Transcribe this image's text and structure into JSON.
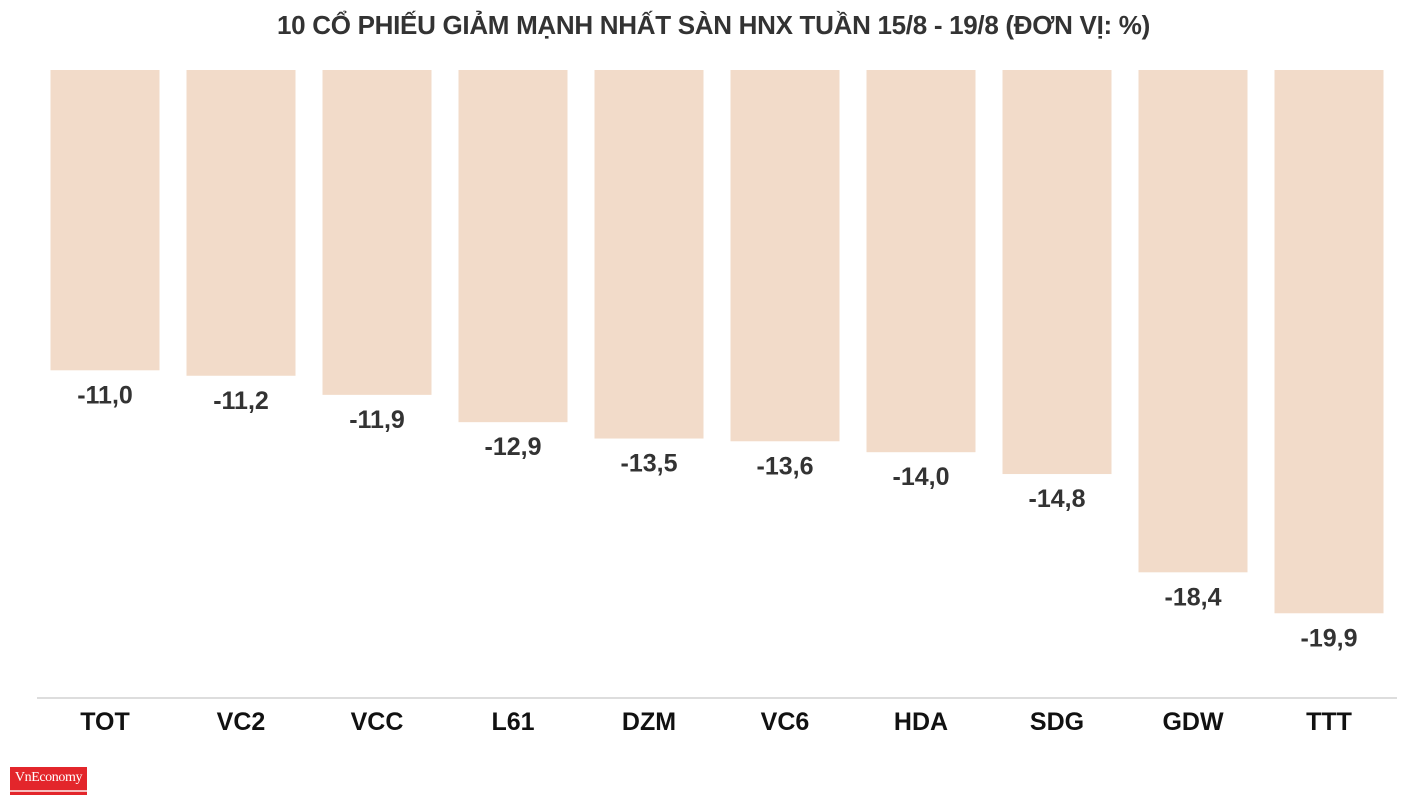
{
  "chart_data": {
    "type": "bar",
    "title": "10 CỔ PHIẾU GIẢM MẠNH NHẤT SÀN HNX TUẦN 15/8 - 19/8 (ĐƠN VỊ: %)",
    "categories": [
      "TOT",
      "VC2",
      "VCC",
      "L61",
      "DZM",
      "VC6",
      "HDA",
      "SDG",
      "GDW",
      "TTT"
    ],
    "values": [
      -11.0,
      -11.2,
      -11.9,
      -12.9,
      -13.5,
      -13.6,
      -14.0,
      -14.8,
      -18.4,
      -19.9
    ],
    "value_labels": [
      "-11,0",
      "-11,2",
      "-11,9",
      "-12,9",
      "-13,5",
      "-13,6",
      "-14,0",
      "-14,8",
      "-18,4",
      "-19,9"
    ],
    "xlabel": "",
    "ylabel": "",
    "ylim": [
      -22,
      0
    ],
    "grid": false,
    "legend": "none",
    "bar_color": "#f2dbc9",
    "label_color": "#333333",
    "axis_color": "#dddddd"
  },
  "brand": {
    "logo_text": "VnEconomy",
    "color": "#e3262b"
  }
}
